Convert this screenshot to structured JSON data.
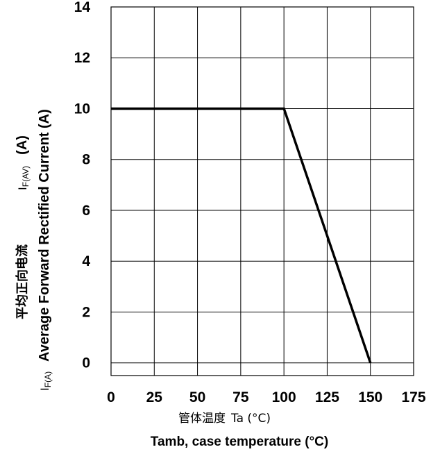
{
  "chart_data": {
    "type": "line",
    "x": [
      0,
      100,
      150
    ],
    "series": [
      {
        "values": [
          10,
          10,
          0
        ]
      }
    ],
    "x_ticks": [
      "0",
      "25",
      "50",
      "75",
      "100",
      "125",
      "150",
      "175"
    ],
    "y_ticks": [
      "0",
      "2",
      "4",
      "6",
      "8",
      "10",
      "12",
      "14"
    ],
    "xlim": [
      0,
      175
    ],
    "ylim": [
      -0.5,
      14
    ],
    "grid": true,
    "xlabel_cn": "管体温度",
    "xlabel_sym": "Ta (°C)",
    "xlabel_en": "Tamb, case temperature (°C)",
    "ylabel_cn": "平均正向电流",
    "ylabel_sym_left": "I",
    "ylabel_sub_left": "F(A)",
    "ylabel_en": "Average Forward Rectified Current (A)",
    "ylabel_sym_right": "I",
    "ylabel_sub_right": "F(AV)",
    "ylabel_unit_right": "(A)"
  }
}
